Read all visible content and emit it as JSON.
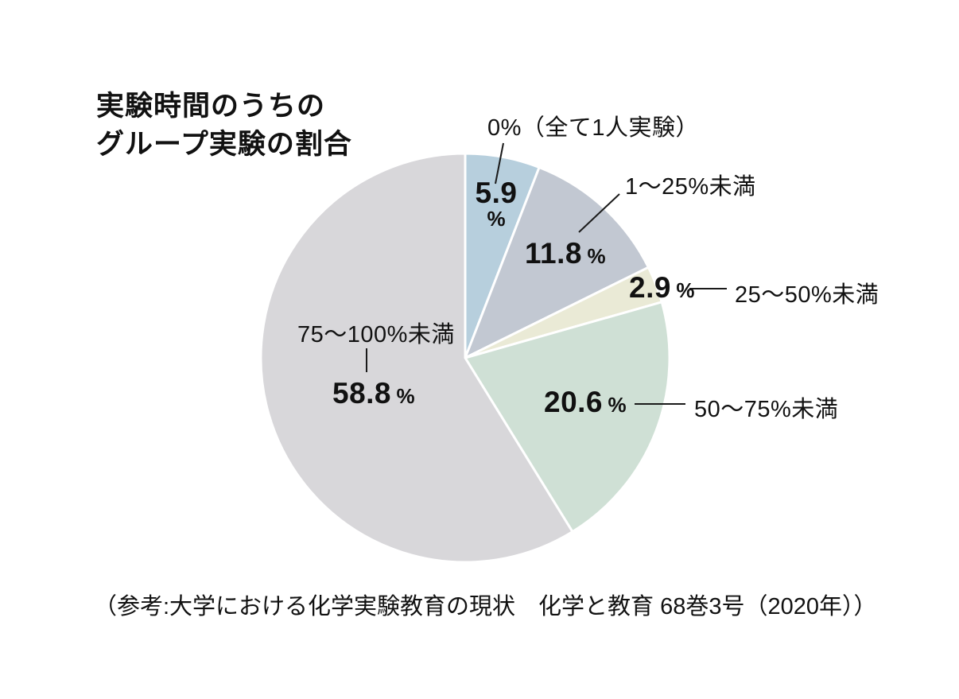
{
  "title": {
    "line1": "実験時間のうちの",
    "line2": "グループ実験の割合"
  },
  "source": "（参考:大学における化学実験教育の現状　化学と教育 68巻3号（2020年））",
  "chart_data": {
    "type": "pie",
    "title": "実験時間のうちのグループ実験の割合",
    "unit": "%",
    "start_angle": "top",
    "direction": "clockwise",
    "categories": [
      "0%（全て1人実験）",
      "1～25%未満",
      "25～50%未満",
      "50～75%未満",
      "75～100%未満"
    ],
    "values": [
      5.9,
      11.8,
      2.9,
      20.6,
      58.8
    ],
    "value_labels": [
      "5.9",
      "11.8",
      "2.9",
      "20.6",
      "58.8"
    ],
    "percent_sign": "%",
    "colors": [
      "#b7cfdd",
      "#c2c8d2",
      "#eaead6",
      "#cfe0d5",
      "#d8d7da"
    ],
    "stroke_color": "#ffffff",
    "legend_position": "callouts"
  }
}
